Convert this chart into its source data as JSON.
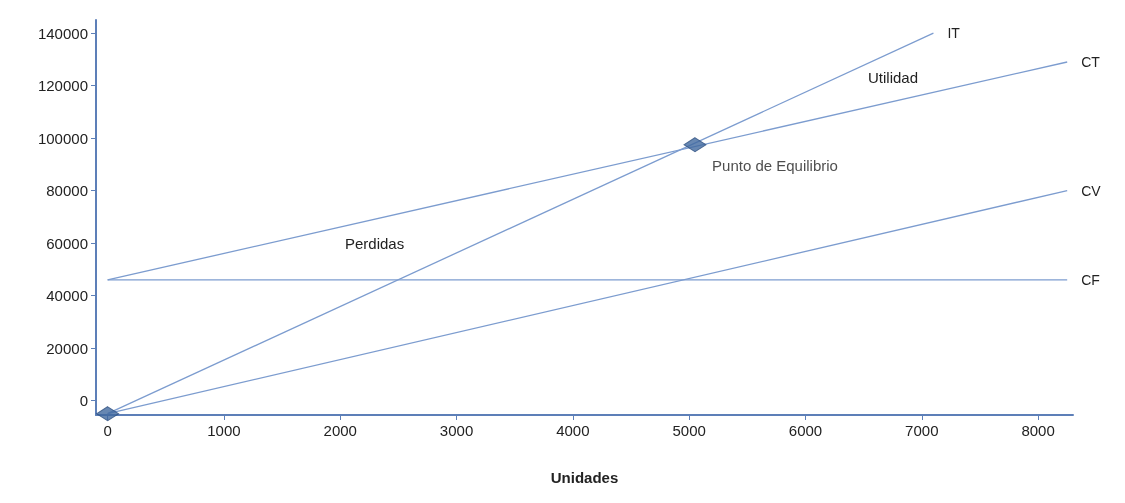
{
  "chart_data": {
    "type": "line",
    "xlabel": "Unidades",
    "xlim": [
      -100,
      8300
    ],
    "ylim": [
      -5500,
      145000
    ],
    "xticks": [
      0,
      1000,
      2000,
      3000,
      4000,
      5000,
      6000,
      7000,
      8000
    ],
    "yticks": [
      0,
      20000,
      40000,
      60000,
      80000,
      100000,
      120000,
      140000
    ],
    "series": [
      {
        "name": "IT",
        "color": "#7c9ccf",
        "x": [
          0,
          7100
        ],
        "values": [
          -5000,
          140000
        ]
      },
      {
        "name": "CT",
        "color": "#7c9ccf",
        "x": [
          0,
          8250
        ],
        "values": [
          46000,
          129000
        ]
      },
      {
        "name": "CV",
        "color": "#7c9ccf",
        "x": [
          0,
          8250
        ],
        "values": [
          -5000,
          80000
        ]
      },
      {
        "name": "CF",
        "color": "#7c9ccf",
        "x": [
          0,
          8250
        ],
        "values": [
          46000,
          46000
        ]
      },
      {
        "type": "scatter",
        "color": "#41699f",
        "marker": "diamond",
        "x": [
          0,
          5050
        ],
        "values": [
          -5000,
          97500
        ]
      }
    ],
    "annotations": [
      "Utilidad",
      "Perdidas",
      {
        "text": "Punto de Equilibrio",
        "x": 5050,
        "y": 97500
      }
    ],
    "grid": false,
    "legend": false,
    "marker": "none",
    "line_style": "solid"
  }
}
